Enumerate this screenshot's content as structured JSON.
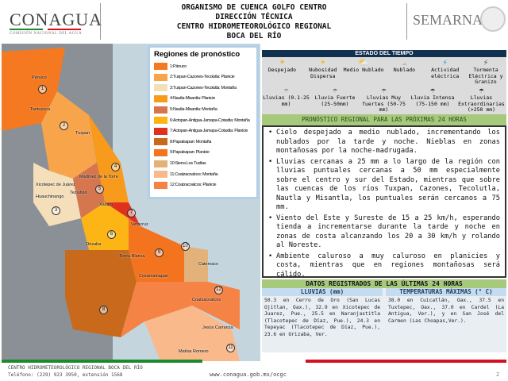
{
  "header": {
    "logo_left": "CONAGUA",
    "logo_left_sub": "COMISIÓN NACIONAL DEL AGUA",
    "title_lines": [
      "ORGANISMO DE CUENCA GOLFO CENTRO",
      "DIRECCIÓN TÉCNICA",
      "CENTRO HIDROMETEOROLÓGICO REGIONAL",
      "BOCA DEL RÍO"
    ],
    "logo_right": "SEMARNAT"
  },
  "map": {
    "legend_title": "Regiones de pronóstico",
    "legend": [
      {
        "label": "1:Pánuco",
        "color": "#f47920"
      },
      {
        "label": "2:Tuxpan-Cazones-Tecolutla: Planicie",
        "color": "#f7a44a"
      },
      {
        "label": "3:Tuxpan-Cazones-Tecolutla: Montaña",
        "color": "#f5dfbb"
      },
      {
        "label": "4:Nautla-Misantla: Planicie",
        "color": "#f89a1c"
      },
      {
        "label": "5:Nautla-Misantla: Montaña",
        "color": "#d5764f"
      },
      {
        "label": "6:Actopan-Antigua-Jamapa-Cotaxtla: Montaña",
        "color": "#fdb515"
      },
      {
        "label": "7:Actopan-Antigua-Jamapa-Cotaxtla: Planicie",
        "color": "#e0301e"
      },
      {
        "label": "8:Papaloapan: Montaña",
        "color": "#c8691b"
      },
      {
        "label": "9:Papaloapan: Planicie",
        "color": "#f4731f"
      },
      {
        "label": "10:Sierra Los Tuxtlas",
        "color": "#e2b27a"
      },
      {
        "label": "11:Coatzacoalcos: Montaña",
        "color": "#f9b98a"
      },
      {
        "label": "12:Coatzacoalcos: Planicie",
        "color": "#f58345"
      }
    ],
    "region_numbers": [
      "1",
      "2",
      "3",
      "4",
      "5",
      "6",
      "7",
      "8",
      "9",
      "10",
      "11",
      "12"
    ],
    "places": [
      "Pánuco",
      "Tantoyuca",
      "Tuxpan",
      "Xicotepec de Juárez",
      "Huauchinango",
      "Martínez de la Torre",
      "Teziutlán",
      "Xalapa",
      "Veracruz",
      "Orizaba",
      "Tierra Blanca",
      "Cosamaloapan",
      "Catemaco",
      "Coatzacoalcos",
      "Matías Romero",
      "Jesús Carranza"
    ]
  },
  "estado": {
    "title": "ESTADO DEL TIEMPO",
    "items": [
      {
        "label": "Despejado",
        "icon": "sun-icon"
      },
      {
        "label": "Nubosidad Dispersa",
        "icon": "sun-cloud-icon"
      },
      {
        "label": "Medio Nublado",
        "icon": "partly-cloudy-icon"
      },
      {
        "label": "Nublado",
        "icon": "cloud-icon"
      },
      {
        "label": "Actividad eléctrica",
        "icon": "lightning-icon"
      },
      {
        "label": "Tormenta Eléctrica y Granizo",
        "icon": "storm-icon"
      },
      {
        "label": "Lluvias (0.1-25 mm)",
        "icon": "light-rain-icon"
      },
      {
        "label": "Lluvia Fuerte (25-50mm)",
        "icon": "rain-icon"
      },
      {
        "label": "Lluvias Muy fuertes (50-75 mm)",
        "icon": "heavy-rain-icon"
      },
      {
        "label": "Lluvia Intensa (75-150 mm)",
        "icon": "intense-rain-icon"
      },
      {
        "label": "Lluvias Extraordinarias (>250 mm)",
        "icon": "extreme-rain-icon"
      }
    ]
  },
  "pronostico": {
    "title": "PRONÓSTICO REGIONAL PARA LAS PRÓXIMAS 24 HORAS",
    "bullets": [
      "Cielo despejado a medio nublado, incrementando los nublados por la tarde y noche. Nieblas en zonas montañosas por la noche-madrugada.",
      "Lluvias cercanas a 25 mm a lo largo de la región con lluvias puntuales cercanas a 50 mm especialmente sobre el centro y sur del Estado, mientras que sobre las cuencas de los ríos Tuxpan, Cazones, Tecolutla, Nautla y Misantla, los puntuales serán cercanos a 75 mm.",
      "Viento del Este y Sureste de 15 a 25 km/h, esperando tienda a incrementarse durante la tarde y noche en zonas de costa alcanzando los 20 a 30 km/h y rolando al Noreste.",
      "Ambiente caluroso a muy caluroso en planicies y costa, mientras que en regiones montañosas será cálido."
    ]
  },
  "datos": {
    "title": "DATOS REGISTRADOS DE LAS ÚLTIMAS 24 HORAS",
    "lluvias_title": "LLUVIAS (mm)",
    "lluvias_text": "50.3 en Cerro de Oro (San Lucas Ojitlan, Oax.), 32.9 en Xicotepec de Juarez, Pue., 25.5 en Naranjastitla (Tlacotepec de Díaz, Pue.), 24.3 en Tepeyac (Tlacotepec de Díaz, Pue.), 23.6 en Orizaba, Ver.",
    "temp_title": "TEMPERATURAS MÁXIMAS (° C)",
    "temp_text": "38.0 en Cuicatlán, Oax., 37.5 en Tuxtepec, Oax., 37.0 en Cardel (La Antigua, Ver.), y en San José del Carmen (Las Choapas,Ver.)."
  },
  "footer": {
    "line1": "CENTRO HIDROMETEOROLÓGICO REGIONAL BOCA DEL RÍO",
    "line2": "Teléfono: (229) 923 3950, extensión 1568",
    "url": "www.conagua.gob.mx/ocgc",
    "page": "2"
  },
  "colors": {
    "navy": "#12304f",
    "green_bar": "#a6c97c",
    "footer_green": "#1b8a2e",
    "footer_red": "#d4111e"
  }
}
